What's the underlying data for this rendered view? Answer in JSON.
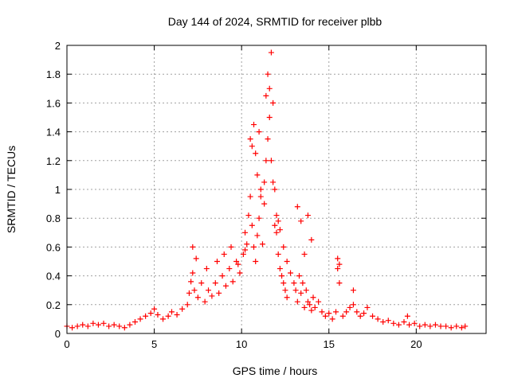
{
  "chart_data": {
    "type": "scatter",
    "title": "Day 144 of 2024, SRMTID for receiver plbb",
    "xlabel": "GPS time / hours",
    "ylabel": "SRMTID / TECUs",
    "xlim": [
      0,
      24
    ],
    "ylim": [
      0,
      2
    ],
    "grid": true,
    "marker": "+",
    "color": "#ff0000",
    "x_ticks": [
      0,
      5,
      10,
      15,
      20
    ],
    "x_tick_labels": [
      "0",
      "5",
      "10",
      "15",
      "20"
    ],
    "y_ticks": [
      0,
      0.2,
      0.4,
      0.6,
      0.8,
      1,
      1.2,
      1.4,
      1.6,
      1.8,
      2
    ],
    "y_tick_labels": [
      "0",
      "0.2",
      "0.4",
      "0.6",
      "0.8",
      "1",
      "1.2",
      "1.4",
      "1.6",
      "1.8",
      "2"
    ],
    "series": [
      {
        "name": "SRMTID",
        "x": [
          0.0,
          0.3,
          0.6,
          0.9,
          1.2,
          1.5,
          1.8,
          2.1,
          2.4,
          2.7,
          3.0,
          3.3,
          3.6,
          3.9,
          4.2,
          4.5,
          4.8,
          5.0,
          5.2,
          5.5,
          5.8,
          6.0,
          6.3,
          6.6,
          6.9,
          7.0,
          7.1,
          7.2,
          7.3,
          7.5,
          7.7,
          7.9,
          8.1,
          8.3,
          8.5,
          8.7,
          8.9,
          9.1,
          9.3,
          9.5,
          9.7,
          9.9,
          10.1,
          10.2,
          10.3,
          10.4,
          10.5,
          10.6,
          10.7,
          10.8,
          10.9,
          11.0,
          11.1,
          11.2,
          11.3,
          11.4,
          11.5,
          11.6,
          11.7,
          11.8,
          11.9,
          12.0,
          12.1,
          12.2,
          12.3,
          12.4,
          12.5,
          12.6,
          12.8,
          13.0,
          13.1,
          13.2,
          13.3,
          13.4,
          13.5,
          13.6,
          13.7,
          13.8,
          13.9,
          14.0,
          14.1,
          14.2,
          14.4,
          14.6,
          14.8,
          15.0,
          15.2,
          15.4,
          15.5,
          15.6,
          15.8,
          16.0,
          16.2,
          16.4,
          16.6,
          16.8,
          17.0,
          17.2,
          17.5,
          17.8,
          18.1,
          18.4,
          18.7,
          19.0,
          19.3,
          19.6,
          19.9,
          20.2,
          20.5,
          20.8,
          21.1,
          21.4,
          21.7,
          22.0,
          22.3,
          22.6,
          22.8,
          10.5,
          10.6,
          10.7,
          10.8,
          10.9,
          11.0,
          11.1,
          11.3,
          11.4,
          11.5,
          11.6,
          11.7,
          11.8,
          11.9,
          12.0,
          12.1,
          12.2,
          12.4,
          12.6,
          13.2,
          13.4,
          13.6,
          13.8,
          14.0,
          7.2,
          7.4,
          8.0,
          8.6,
          9.0,
          9.4,
          9.8,
          10.2,
          15.5,
          15.6,
          16.4,
          19.5
        ],
        "y": [
          0.05,
          0.04,
          0.05,
          0.06,
          0.05,
          0.07,
          0.06,
          0.07,
          0.05,
          0.06,
          0.05,
          0.04,
          0.06,
          0.08,
          0.1,
          0.12,
          0.14,
          0.17,
          0.13,
          0.1,
          0.12,
          0.15,
          0.13,
          0.17,
          0.2,
          0.28,
          0.36,
          0.42,
          0.3,
          0.25,
          0.35,
          0.22,
          0.3,
          0.26,
          0.35,
          0.28,
          0.4,
          0.33,
          0.45,
          0.36,
          0.5,
          0.42,
          0.55,
          0.7,
          0.62,
          0.82,
          0.95,
          0.75,
          0.6,
          0.5,
          0.68,
          0.8,
          1.0,
          0.62,
          0.9,
          1.2,
          1.35,
          1.5,
          1.95,
          1.6,
          0.75,
          0.7,
          0.55,
          0.45,
          0.4,
          0.35,
          0.3,
          0.25,
          0.42,
          0.35,
          0.3,
          0.22,
          0.4,
          0.28,
          0.35,
          0.18,
          0.3,
          0.22,
          0.2,
          0.16,
          0.25,
          0.18,
          0.22,
          0.15,
          0.12,
          0.14,
          0.1,
          0.15,
          0.45,
          0.35,
          0.12,
          0.15,
          0.18,
          0.2,
          0.15,
          0.12,
          0.14,
          0.18,
          0.12,
          0.1,
          0.08,
          0.09,
          0.07,
          0.06,
          0.08,
          0.06,
          0.07,
          0.05,
          0.06,
          0.05,
          0.06,
          0.05,
          0.05,
          0.04,
          0.05,
          0.04,
          0.05,
          1.35,
          1.3,
          1.45,
          1.25,
          1.1,
          1.4,
          0.95,
          1.05,
          1.65,
          1.8,
          1.7,
          1.2,
          1.05,
          1.0,
          0.82,
          0.78,
          0.72,
          0.6,
          0.5,
          0.88,
          0.78,
          0.55,
          0.82,
          0.65,
          0.6,
          0.52,
          0.45,
          0.5,
          0.55,
          0.6,
          0.48,
          0.58,
          0.52,
          0.48,
          0.3,
          0.12
        ]
      }
    ]
  }
}
